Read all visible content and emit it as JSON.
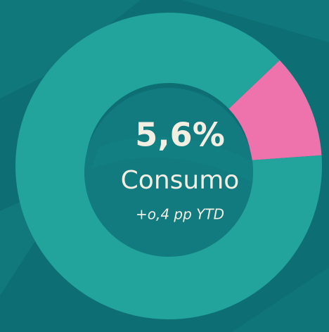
{
  "chart_data": {
    "type": "donut",
    "values": [
      11,
      89
    ],
    "colors": [
      "#ee73ac",
      "#22a39b"
    ],
    "kpi": {
      "value": 5.6,
      "label": "5,6%"
    },
    "title": "Consumo",
    "subtitle": "+o,4 pp YTD"
  }
}
